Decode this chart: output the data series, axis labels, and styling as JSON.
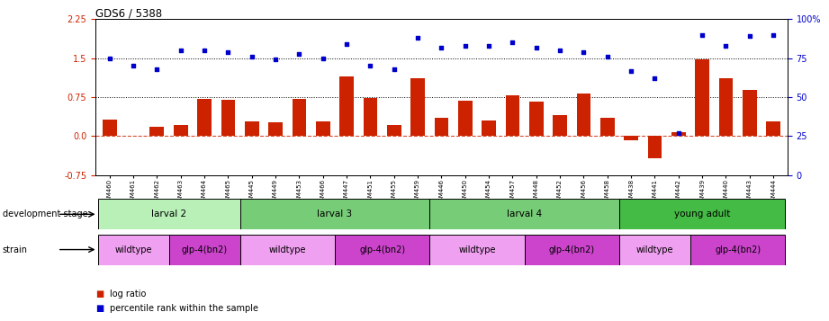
{
  "title": "GDS6 / 5388",
  "samples": [
    "GSM460",
    "GSM461",
    "GSM462",
    "GSM463",
    "GSM464",
    "GSM465",
    "GSM445",
    "GSM449",
    "GSM453",
    "GSM466",
    "GSM447",
    "GSM451",
    "GSM455",
    "GSM459",
    "GSM446",
    "GSM450",
    "GSM454",
    "GSM457",
    "GSM448",
    "GSM452",
    "GSM456",
    "GSM458",
    "GSM438",
    "GSM441",
    "GSM442",
    "GSM439",
    "GSM440",
    "GSM443",
    "GSM444"
  ],
  "log_ratio": [
    0.32,
    0.0,
    0.18,
    0.22,
    0.72,
    0.7,
    0.28,
    0.27,
    0.72,
    0.28,
    1.15,
    0.73,
    0.22,
    1.12,
    0.35,
    0.68,
    0.3,
    0.78,
    0.67,
    0.4,
    0.82,
    0.35,
    -0.08,
    -0.42,
    0.07,
    1.48,
    1.12,
    0.88,
    0.28
  ],
  "percentile": [
    75,
    70,
    68,
    80,
    80,
    79,
    76,
    74,
    78,
    75,
    84,
    70,
    68,
    88,
    82,
    83,
    83,
    85,
    82,
    80,
    79,
    76,
    67,
    62,
    27,
    90,
    83,
    89,
    90
  ],
  "bar_color": "#cc2200",
  "scatter_color": "#0000cc",
  "left_ylim": [
    -0.75,
    2.25
  ],
  "right_ylim": [
    0,
    100
  ],
  "left_yticks": [
    -0.75,
    0.0,
    0.75,
    1.5,
    2.25
  ],
  "right_yticks": [
    0,
    25,
    50,
    75,
    100
  ],
  "hline1": 1.5,
  "hline2": 0.75,
  "hline0": 0.0,
  "stage_boundaries": [
    [
      0,
      6,
      "larval 2",
      "#b8f0b8"
    ],
    [
      6,
      14,
      "larval 3",
      "#77cc77"
    ],
    [
      14,
      22,
      "larval 4",
      "#77cc77"
    ],
    [
      22,
      29,
      "young adult",
      "#44bb44"
    ]
  ],
  "strain_boundaries": [
    [
      0,
      3,
      "wildtype",
      "#f0a0f0"
    ],
    [
      3,
      6,
      "glp-4(bn2)",
      "#cc44cc"
    ],
    [
      6,
      10,
      "wildtype",
      "#f0a0f0"
    ],
    [
      10,
      14,
      "glp-4(bn2)",
      "#cc44cc"
    ],
    [
      14,
      18,
      "wildtype",
      "#f0a0f0"
    ],
    [
      18,
      22,
      "glp-4(bn2)",
      "#cc44cc"
    ],
    [
      22,
      25,
      "wildtype",
      "#f0a0f0"
    ],
    [
      25,
      29,
      "glp-4(bn2)",
      "#cc44cc"
    ]
  ]
}
